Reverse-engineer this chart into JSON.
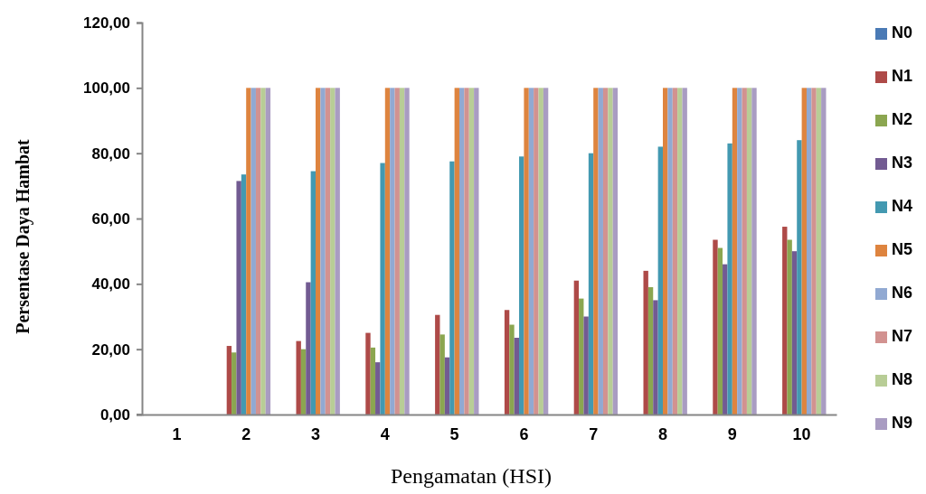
{
  "chart_data": {
    "type": "bar",
    "xlabel": "Pengamatan (HSI)",
    "ylabel": "Persentase Daya Hambat",
    "categories": [
      "1",
      "2",
      "3",
      "4",
      "5",
      "6",
      "7",
      "8",
      "9",
      "10"
    ],
    "series": [
      {
        "name": "N0",
        "color": "#4a7ab5",
        "values": [
          0,
          0,
          0,
          0,
          0,
          0,
          0,
          0,
          0,
          0
        ]
      },
      {
        "name": "N1",
        "color": "#ae4a48",
        "values": [
          0,
          21,
          22.5,
          25,
          30.5,
          32,
          41,
          44,
          53.5,
          57.5
        ]
      },
      {
        "name": "N2",
        "color": "#8ba650",
        "values": [
          0,
          19,
          20,
          20.5,
          24.5,
          27.5,
          35.5,
          39,
          51,
          53.5
        ]
      },
      {
        "name": "N3",
        "color": "#725b92",
        "values": [
          0,
          71.5,
          40.5,
          16,
          17.5,
          23.5,
          30,
          35,
          46,
          50
        ]
      },
      {
        "name": "N4",
        "color": "#4399b1",
        "values": [
          0,
          73.5,
          74.5,
          77,
          77.5,
          79,
          80,
          82,
          83,
          84
        ]
      },
      {
        "name": "N5",
        "color": "#de843f",
        "values": [
          0,
          100,
          100,
          100,
          100,
          100,
          100,
          100,
          100,
          100
        ]
      },
      {
        "name": "N6",
        "color": "#91a9d2",
        "values": [
          0,
          100,
          100,
          100,
          100,
          100,
          100,
          100,
          100,
          100
        ]
      },
      {
        "name": "N7",
        "color": "#d29290",
        "values": [
          0,
          100,
          100,
          100,
          100,
          100,
          100,
          100,
          100,
          100
        ]
      },
      {
        "name": "N8",
        "color": "#b8cd96",
        "values": [
          0,
          100,
          100,
          100,
          100,
          100,
          100,
          100,
          100,
          100
        ]
      },
      {
        "name": "N9",
        "color": "#a99cc2",
        "values": [
          0,
          100,
          100,
          100,
          100,
          100,
          100,
          100,
          100,
          100
        ]
      }
    ],
    "ylim": [
      0,
      120
    ],
    "yticks": [
      {
        "value": 0,
        "label": "0,00"
      },
      {
        "value": 20,
        "label": "20,00"
      },
      {
        "value": 40,
        "label": "40,00"
      },
      {
        "value": 60,
        "label": "60,00"
      },
      {
        "value": 80,
        "label": "80,00"
      },
      {
        "value": 100,
        "label": "100,00"
      },
      {
        "value": 120,
        "label": "120,00"
      }
    ],
    "grid": false,
    "legend": "right"
  }
}
